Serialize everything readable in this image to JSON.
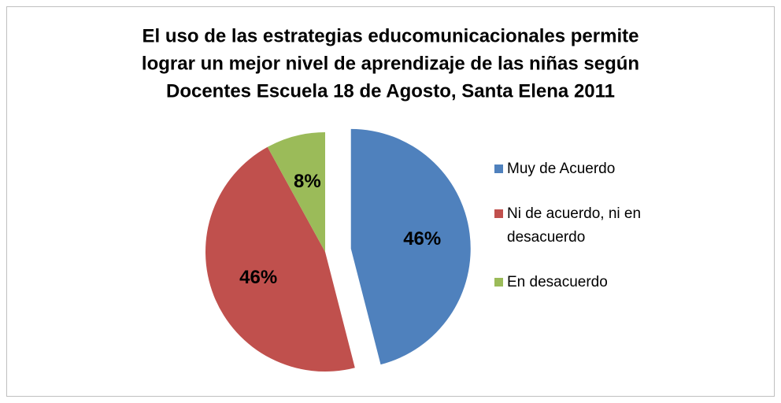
{
  "chart_data": {
    "type": "pie",
    "title": [
      "El uso de las estrategias educomunicacionales permite",
      "lograr un mejor  nivel de aprendizaje de las niñas según",
      "Docentes Escuela 18 de Agosto, Santa Elena 2011"
    ],
    "categories": [
      "Muy de Acuerdo",
      "Ni de acuerdo, ni en desacuerdo",
      "En desacuerdo"
    ],
    "values": [
      46,
      46,
      8
    ],
    "value_labels": [
      "46%",
      "46%",
      "8%"
    ],
    "colors": [
      "#4f81bd",
      "#c0504d",
      "#9bbb59"
    ],
    "legend": "right"
  }
}
